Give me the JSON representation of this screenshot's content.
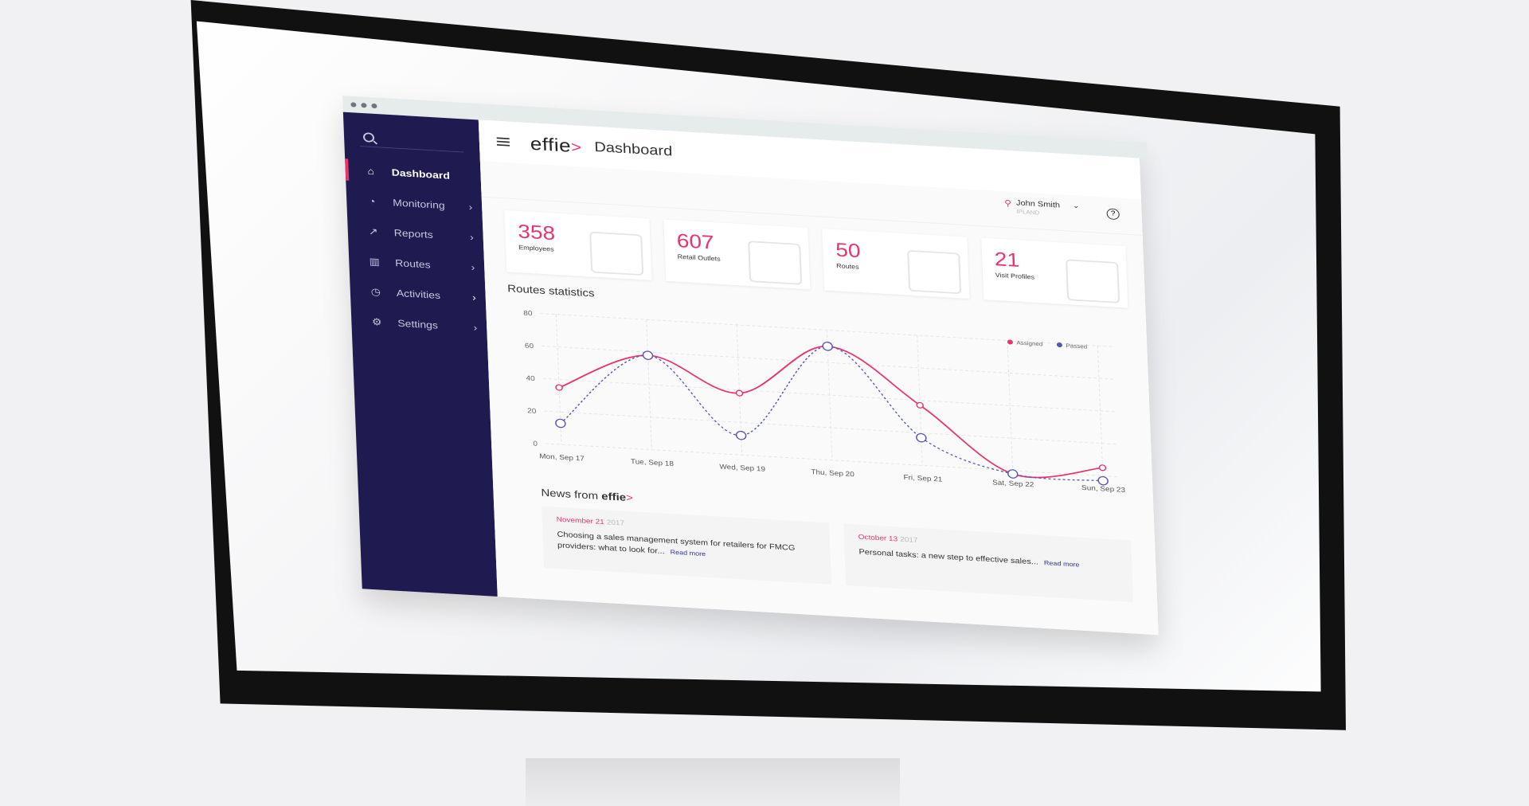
{
  "app": {
    "logo": "effie",
    "logo_arrow": ">",
    "page_title": "Dashboard"
  },
  "sidebar": {
    "items": [
      {
        "label": "Dashboard",
        "icon": "home-icon",
        "active": true
      },
      {
        "label": "Monitoring",
        "icon": "pie-chart-icon",
        "active": false
      },
      {
        "label": "Reports",
        "icon": "trending-up-icon",
        "active": false
      },
      {
        "label": "Routes",
        "icon": "map-icon",
        "active": false
      },
      {
        "label": "Activities",
        "icon": "clock-icon",
        "active": false
      },
      {
        "label": "Settings",
        "icon": "gear-icon",
        "active": false
      }
    ]
  },
  "user": {
    "name": "John Smith",
    "org": "IPLAND"
  },
  "stats": [
    {
      "value": "358",
      "label": "Employees",
      "icon": "people-icon"
    },
    {
      "value": "607",
      "label": "Retail Outlets",
      "icon": "store-icon"
    },
    {
      "value": "50",
      "label": "Routes",
      "icon": "route-pin-icon"
    },
    {
      "value": "21",
      "label": "Visit Profiles",
      "icon": "clipboard-icon"
    }
  ],
  "routes_title": "Routes statistics",
  "chart_data": {
    "type": "line",
    "x": [
      "Mon, Sep 17",
      "Tue, Sep 18",
      "Wed, Sep 19",
      "Thu, Sep 20",
      "Fri, Sep 21",
      "Sat, Sep 22",
      "Sun, Sep 23"
    ],
    "series": [
      {
        "name": "Assigned",
        "color": "#e8336f",
        "values": [
          35,
          58,
          38,
          70,
          37,
          -2,
          5
        ]
      },
      {
        "name": "Passed",
        "color": "#5656b8",
        "values": [
          13,
          58,
          12,
          70,
          17,
          -2,
          -3
        ]
      }
    ],
    "ylim": [
      0,
      80
    ],
    "yticks": [
      "0",
      "20",
      "40",
      "60",
      "80"
    ],
    "grid": true,
    "legend": "top-right"
  },
  "news_title": "News from",
  "news_brand": "effie",
  "news": [
    {
      "date": "November 21",
      "year": "2017",
      "text": "Choosing a sales management system for retailers for FMCG providers: what to look for...",
      "link": "Read more"
    },
    {
      "date": "October 13",
      "year": "2017",
      "text": "Personal tasks: a new step to effective sales...",
      "link": "Read more"
    }
  ]
}
